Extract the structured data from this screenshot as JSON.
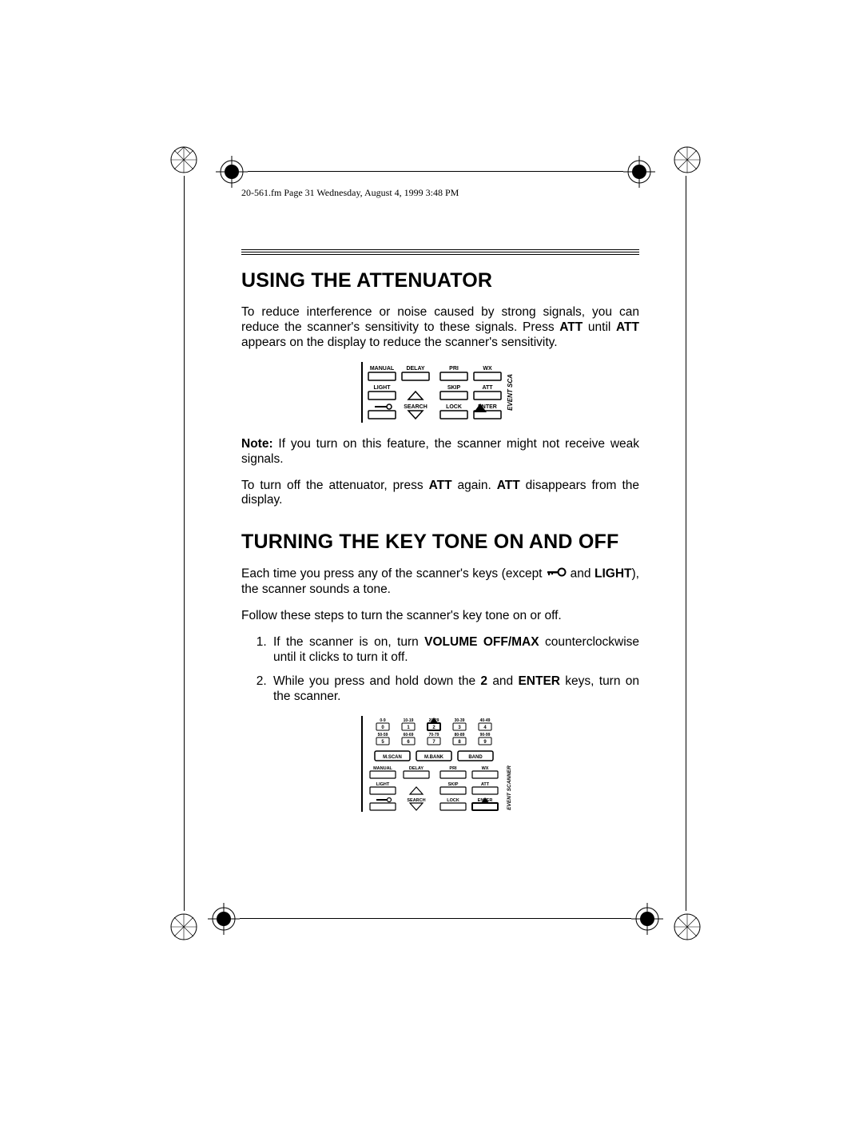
{
  "header": {
    "text": "20-561.fm  Page 31  Wednesday, August 4, 1999  3:48 PM"
  },
  "section1": {
    "heading": "USING THE ATTENUATOR",
    "para1_a": "To reduce interference or noise caused by strong signals, you can reduce the scanner's sensitivity to these signals. Press ",
    "para1_b_bold": "ATT",
    "para1_c": " until ",
    "para1_d_bold": "ATT",
    "para1_e": " appears on the display to reduce the scanner's sensitivity.",
    "note_label": "Note:",
    "note_text": " If you turn on this feature, the scanner might not receive weak signals.",
    "para2_a": "To turn off the attenuator, press ",
    "para2_b_bold": "ATT",
    "para2_c": " again. ",
    "para2_d_bold": "ATT",
    "para2_e": " disappears from the display."
  },
  "figure1": {
    "row1": [
      "MANUAL",
      "DELAY",
      "PRI",
      "WX"
    ],
    "row2": [
      "LIGHT",
      "",
      "SKIP",
      "ATT"
    ],
    "row3": [
      "",
      "SEARCH",
      "LOCK",
      "ENTER"
    ],
    "side_label": "EVENT  SCA",
    "highlight_button": "ENTER",
    "lock_icon": true
  },
  "section2": {
    "heading": "TURNING THE KEY TONE ON AND OFF",
    "para1_a": "Each time you press any of the scanner's keys (except ",
    "para1_b": " and ",
    "para1_c_bold": "LIGHT",
    "para1_d": "), the scanner sounds a tone.",
    "para2": "Follow these steps to turn the scanner's key tone on or off.",
    "step1_a": "If the scanner is on, turn ",
    "step1_b_bold": "VOLUME OFF/MAX",
    "step1_c": " counterclockwise until it clicks to turn it off.",
    "step2_a": "While you press and hold down the ",
    "step2_b_bold": "2",
    "step2_c": " and ",
    "step2_d_bold": "ENTER",
    "step2_e": " keys, turn on the scanner."
  },
  "figure2": {
    "num_row1_labels": [
      "0-9",
      "10-19",
      "20-29",
      "30-39",
      "40-49"
    ],
    "num_row1": [
      "0",
      "1",
      "2",
      "3",
      "4"
    ],
    "num_row2_labels": [
      "50-59",
      "60-69",
      "70-79",
      "80-89",
      "90-99"
    ],
    "num_row2": [
      "5",
      "6",
      "7",
      "8",
      "9"
    ],
    "mid_row": [
      "M.SCAN",
      "M.BANK",
      "BAND"
    ],
    "row1": [
      "MANUAL",
      "DELAY",
      "PRI",
      "WX"
    ],
    "row2": [
      "LIGHT",
      "",
      "SKIP",
      "ATT"
    ],
    "row3": [
      "",
      "SEARCH",
      "LOCK",
      "ENTER"
    ],
    "side_label": "EVENT   SCANNER",
    "highlight_buttons": [
      "2",
      "ENTER"
    ]
  },
  "page_number": "31",
  "colors": {
    "text": "#000000",
    "background": "#ffffff",
    "rule": "#000000"
  }
}
